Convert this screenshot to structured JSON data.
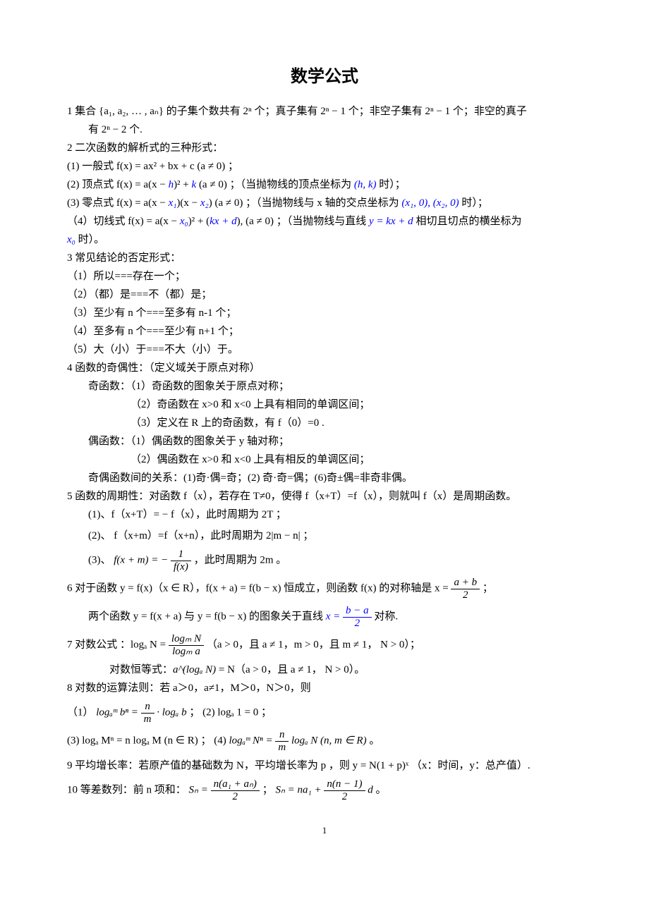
{
  "title": "数学公式",
  "items": {
    "s1": "1  集合 {a₁, a₂, … , aₙ} 的子集个数共有 2ⁿ  个；真子集有 2ⁿ − 1 个；非空子集有 2ⁿ − 1 个；非空的真子",
    "s1b": "有 2ⁿ − 2 个.",
    "s2": "2 二次函数的解析式的三种形式：",
    "s2_1": "(1)  一般式 f(x) = ax² + bx + c (a ≠ 0) ；",
    "s2_2a": "(2)  顶点式 f(x) = a(x − ",
    "s2_2b": "h",
    "s2_2c": ")² + ",
    "s2_2d": "k",
    "s2_2e": " (a ≠ 0) ；（当抛物线的顶点坐标为 ",
    "s2_2f": "(h, k)",
    "s2_2g": " 时）；",
    "s2_3a": "(3)  零点式 f(x) = a(x − ",
    "s2_3b": "x₁",
    "s2_3c": ")(x − ",
    "s2_3d": "x₂",
    "s2_3e": ") (a ≠ 0) ；（当抛物线与 x 轴的交点坐标为 ",
    "s2_3f": "(x₁, 0), (x₂, 0)",
    "s2_3g": " 时）；",
    "s2_4a": "（4）切线式 f(x) = a(x − ",
    "s2_4b": "x₀",
    "s2_4c": ")² + (",
    "s2_4d": "kx + d",
    "s2_4e": "), (a ≠ 0) ；（当抛物线与直线 ",
    "s2_4f": "y = kx + d",
    "s2_4g": " 相切且切点的横坐标为",
    "s2_4h": "x₀",
    "s2_4i": " 时）。",
    "s3": "3  常见结论的否定形式：",
    "s3_1": "（1）所以===存在一个；",
    "s3_2": "（2）（都）是===不（都）是；",
    "s3_3": "（3）至少有 n 个===至多有 n-1 个；",
    "s3_4": "（4）至多有 n 个===至少有 n+1 个；",
    "s3_5": "（5）大（小）于===不大（小）于。",
    "s4": "4 函数的奇偶性：（定义域关于原点对称）",
    "s4_odd": "奇函数：（1）奇函数的图象关于原点对称；",
    "s4_odd2": "（2）奇函数在 x>0 和 x<0 上具有相同的单调区间；",
    "s4_odd3": "（3）定义在 R 上的奇函数，有 f（0）=0  .",
    "s4_even": "偶函数：（1）偶函数的图象关于 y 轴对称；",
    "s4_even2": "（2）偶函数在 x>0 和 x<0 上具有相反的单调区间；",
    "s4_rel": "奇偶函数间的关系：(1)奇·偶=奇；(2) 奇·奇=偶；(6)奇±偶=非奇非偶。",
    "s5": "5 函数的周期性：对函数 f（x），若存在 T≠0，使得 f（x+T）=f（x），则就叫 f（x）是周期函数。",
    "s5_1": "(1)、f（x+T）= − f（x），此时周期为 2T ；",
    "s5_2": "(2)、 f（x+m）=f（x+n），此时周期为 2|m − n| ；",
    "s5_3a": "(3)、",
    "s5_3b": "，此时周期为 2m  。",
    "s6a": "6 对于函数 y = f(x)（x ∈ R），f(x + a) = f(b − x) 恒成立，则函数 f(x) 的对称轴是 x = ",
    "s6b": " ；",
    "s6c": "两个函数 y = f(x + a) 与 y = f(b − x)  的图象关于直线 ",
    "s6d": " 对称.",
    "s7a": "7  对数公式 ：logₐ N = ",
    "s7b": " （a > 0，且 a ≠ 1，m > 0，且 m ≠ 1， N > 0）；",
    "s7c": "对数恒等式：",
    "s7d": " = N（a > 0，且 a ≠ 1， N > 0）。",
    "s8": "8  对数的运算法则：若 a＞0，a≠1，M＞0，N＞0，则",
    "s8_1a": "（1）",
    "s8_1b": " ；               (2) logₐ 1 = 0 ；",
    "s8_3": "(3) logₐ Mⁿ = n logₐ M (n ∈ R) ；      (4)  ",
    "s8_4": " 。",
    "s9": "9  平均增长率：若原产值的基础数为 N，平均增长率为 p ，则  y = N(1 + p)ˣ （x：时间，y：总产值）.",
    "s10a": "10 等差数列：前 n 项和：",
    "s10b": "  ；  ",
    "s10c": " 。",
    "page": "1",
    "frac_ab_num": "a + b",
    "frac_ab_den": "2",
    "frac_ba_num": "b − a",
    "frac_ba_den": "2",
    "frac_log_num": "logₘ N",
    "frac_log_den": "logₘ a",
    "frac_nm_num": "n",
    "frac_nm_den": "m",
    "frac_f_num": "1",
    "frac_f_den": "f(x)",
    "frac_s1_num": "n(a₁ + aₙ)",
    "frac_s1_den": "2",
    "frac_s2_num": "n(n − 1)",
    "frac_s2_den": "2",
    "fxm": "f(x + m) = −",
    "alog": "a^(logₐ N)",
    "log_amn": "logₐᵐ bⁿ = ",
    "log_ab": " · logₐ b",
    "log_nn": "logₐᵐ Nⁿ = ",
    "log_nm": " logₐ N (n, m ∈ R)",
    "sn1": "Sₙ = ",
    "sn2": "Sₙ = na₁ + ",
    "sn3": " d",
    "xeq": "x = "
  },
  "style": {
    "body_width": 920,
    "body_height": 1302,
    "font_size": 15,
    "title_size": 24,
    "text_color": "#000000",
    "highlight_color": "#0000ff",
    "background": "#ffffff",
    "font_family": "SimSun"
  }
}
